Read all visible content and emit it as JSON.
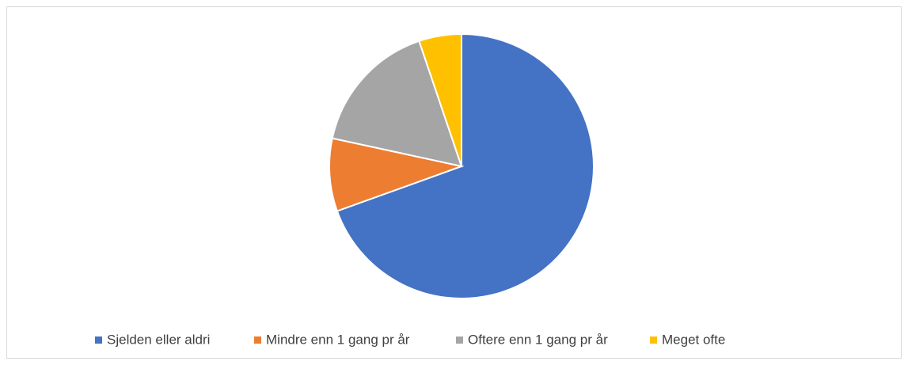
{
  "chart_data": {
    "type": "pie",
    "categories": [
      "Sjelden eller aldri",
      "Mindre enn 1 gang pr år",
      "Oftere enn 1 gang pr år",
      "Meget ofte"
    ],
    "values": [
      69.5,
      8.9,
      16.4,
      5.2
    ],
    "colors": [
      "#4472c4",
      "#ed7d31",
      "#a5a5a5",
      "#ffc000"
    ],
    "legend": "bottom"
  }
}
